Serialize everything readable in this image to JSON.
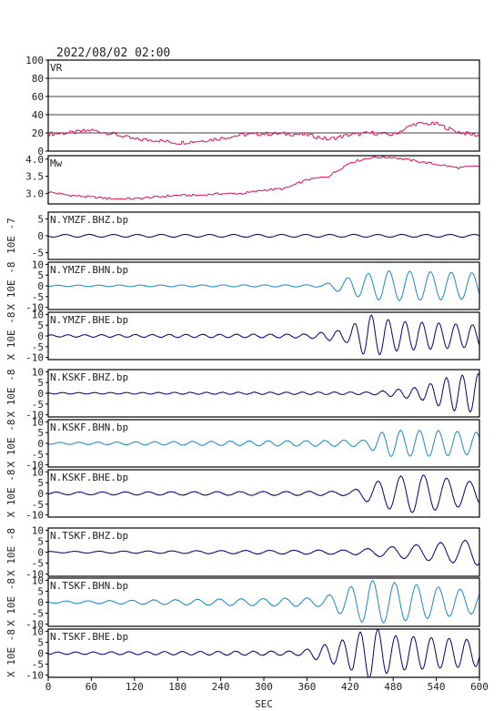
{
  "header": {
    "timestamp": "2022/08/02 02:00"
  },
  "chart_data": {
    "type": "line",
    "title": "2022/08/02 02:00",
    "xlabel": "SEC",
    "xlim": [
      0,
      600
    ],
    "xticks": [
      "0",
      "60",
      "120",
      "180",
      "240",
      "300",
      "360",
      "420",
      "480",
      "540",
      "600"
    ],
    "panels": [
      {
        "label": "VR",
        "color": "#e0105a",
        "ylim": [
          0,
          100
        ],
        "ytick_values": [
          0,
          20,
          40,
          60,
          80,
          100
        ],
        "ytick_labels": [
          "0",
          "20",
          "40",
          "60",
          "80",
          "100"
        ],
        "grid": true,
        "x": [
          0,
          30,
          60,
          90,
          120,
          150,
          180,
          210,
          240,
          270,
          300,
          330,
          360,
          390,
          420,
          450,
          480,
          510,
          540,
          570,
          600
        ],
        "values": [
          19,
          20,
          23,
          19,
          13,
          12,
          9,
          11,
          14,
          18,
          19,
          19,
          18,
          13,
          18,
          20,
          18,
          30,
          30,
          21,
          17
        ]
      },
      {
        "label": "Mw",
        "color": "#e0105a",
        "ylim": [
          2.7,
          4.1
        ],
        "ytick_values": [
          3.0,
          3.5,
          4.0
        ],
        "ytick_labels": [
          "3.0",
          "3.5",
          "4.0"
        ],
        "grid": false,
        "x": [
          0,
          30,
          60,
          90,
          120,
          150,
          180,
          210,
          240,
          270,
          300,
          330,
          360,
          390,
          420,
          450,
          480,
          510,
          540,
          570,
          600
        ],
        "values": [
          3.05,
          2.95,
          2.9,
          2.85,
          2.85,
          2.9,
          2.95,
          2.95,
          3.0,
          3.0,
          3.1,
          3.15,
          3.4,
          3.5,
          3.9,
          4.05,
          4.05,
          3.95,
          3.85,
          3.75,
          3.8
        ]
      },
      {
        "label": "N.YMZF.BHZ.bp",
        "color": "#00007a",
        "ylabel": "10E -7",
        "ylim": [
          -7,
          7
        ],
        "ytick_values": [
          -5,
          0,
          5
        ],
        "ytick_labels": [
          "-5",
          "0",
          "5"
        ],
        "envelope": {
          "x": [
            0,
            400,
            600
          ],
          "amp": [
            0.4,
            0.4,
            0.4
          ]
        }
      },
      {
        "label": "N.YMZF.BHN.bp",
        "color": "#1a88c8",
        "ylabel": "X 10E -8",
        "ylim": [
          -11,
          11
        ],
        "ytick_values": [
          -10,
          -5,
          0,
          5,
          10
        ],
        "ytick_labels": [
          "-10",
          "-5",
          "0",
          "5",
          "10"
        ],
        "envelope": {
          "x": [
            0,
            380,
            430,
            470,
            600
          ],
          "amp": [
            0.3,
            0.5,
            5,
            7,
            6
          ]
        }
      },
      {
        "label": "N.YMZF.BHE.bp",
        "color": "#00007a",
        "ylabel": "X 10E -8",
        "ylim": [
          -11,
          11
        ],
        "ytick_values": [
          -10,
          -5,
          0,
          5,
          10
        ],
        "ytick_labels": [
          "-10",
          "-5",
          "0",
          "5",
          "10"
        ],
        "envelope": {
          "x": [
            0,
            360,
            415,
            445,
            480,
            600
          ],
          "amp": [
            0.5,
            0.9,
            3,
            10,
            7,
            5
          ]
        }
      },
      {
        "label": "N.KSKF.BHZ.bp",
        "color": "#00007a",
        "ylabel": "X 10E -8",
        "ylim": [
          -11,
          11
        ],
        "ytick_values": [
          -10,
          -5,
          0,
          5,
          10
        ],
        "ytick_labels": [
          "-10",
          "-5",
          "0",
          "5",
          "10"
        ],
        "envelope": {
          "x": [
            0,
            450,
            520,
            560,
            600
          ],
          "amp": [
            0.3,
            0.6,
            3,
            8,
            9
          ]
        }
      },
      {
        "label": "N.KSKF.BHN.bp",
        "color": "#1a88c8",
        "ylabel": "X 10E -8",
        "ylim": [
          -11,
          11
        ],
        "ytick_values": [
          -10,
          -5,
          0,
          5,
          10
        ],
        "ytick_labels": [
          "-10",
          "-5",
          "0",
          "5",
          "10"
        ],
        "envelope": {
          "x": [
            0,
            440,
            470,
            540,
            600
          ],
          "amp": [
            0.4,
            1.5,
            6,
            6,
            5
          ]
        }
      },
      {
        "label": "N.KSKF.BHE.bp",
        "color": "#00007a",
        "ylabel": "X 10E -8",
        "ylim": [
          -11,
          11
        ],
        "ytick_values": [
          -10,
          -5,
          0,
          5,
          10
        ],
        "ytick_labels": [
          "-10",
          "-5",
          "0",
          "5",
          "10"
        ],
        "envelope": {
          "x": [
            0,
            420,
            470,
            510,
            600
          ],
          "amp": [
            0.6,
            1,
            7,
            9,
            5
          ]
        }
      },
      {
        "label": "N.TSKF.BHZ.bp",
        "color": "#00007a",
        "ylabel": "X 10E -8",
        "ylim": [
          -11,
          11
        ],
        "ytick_values": [
          -10,
          -5,
          0,
          5,
          10
        ],
        "ytick_labels": [
          "-10",
          "-5",
          "0",
          "5",
          "10"
        ],
        "envelope": {
          "x": [
            0,
            420,
            500,
            570,
            600
          ],
          "amp": [
            0.3,
            1,
            3,
            5,
            6
          ]
        }
      },
      {
        "label": "N.TSKF.BHN.bp",
        "color": "#1a88c8",
        "ylabel": "X 10E -8",
        "ylim": [
          -11,
          11
        ],
        "ytick_values": [
          -10,
          -5,
          0,
          5,
          10
        ],
        "ytick_labels": [
          "-10",
          "-5",
          "0",
          "5",
          "10"
        ],
        "envelope": {
          "x": [
            0,
            380,
            445,
            480,
            600
          ],
          "amp": [
            0.4,
            2,
            10,
            9,
            5
          ]
        }
      },
      {
        "label": "N.TSKF.BHE.bp",
        "color": "#00007a",
        "ylabel": "X 10E -8",
        "ylim": [
          -11,
          11
        ],
        "ytick_values": [
          -10,
          -5,
          0,
          5,
          10
        ],
        "ytick_labels": [
          "-10",
          "-5",
          "0",
          "5",
          "10"
        ],
        "envelope": {
          "x": [
            0,
            350,
            410,
            450,
            480,
            600
          ],
          "amp": [
            0.5,
            1,
            6,
            12,
            8,
            6
          ]
        }
      }
    ]
  }
}
